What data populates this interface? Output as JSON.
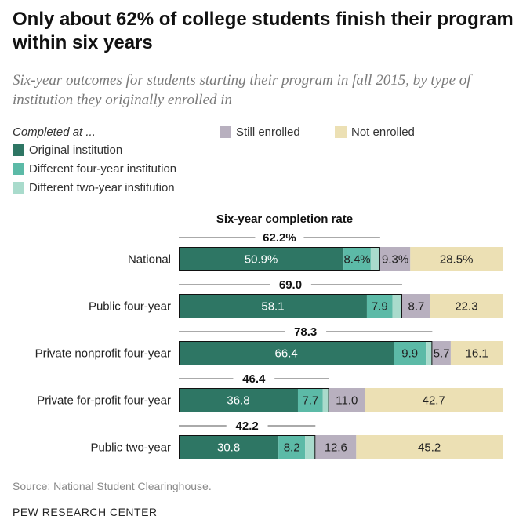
{
  "title": "Only about 62% of college students finish their program within six years",
  "subtitle": "Six-year outcomes for students starting their program in fall 2015, by type of institution they originally enrolled in",
  "legend": {
    "completed_header": "Completed at ...",
    "original": "Original institution",
    "diff_four": "Different four-year institution",
    "diff_two": "Different two-year institution",
    "still": "Still enrolled",
    "not": "Not enrolled"
  },
  "colors": {
    "original": "#2e7664",
    "diff_four": "#5cbaa7",
    "diff_two": "#a9dbcc",
    "still": "#b8b0bf",
    "not": "#ece0b4"
  },
  "source": "Source: National Student Clearinghouse.",
  "brand": "PEW RESEARCH CENTER",
  "chart_data": {
    "type": "bar",
    "orientation": "horizontal",
    "stacked": true,
    "title": "Six-year completion rate",
    "xlim": [
      0,
      100
    ],
    "categories": [
      "National",
      "Public four-year",
      "Private nonprofit four-year",
      "Private for-profit four-year",
      "Public two-year"
    ],
    "series": [
      {
        "name": "Original institution",
        "key": "original",
        "values": [
          50.9,
          58.1,
          66.4,
          36.8,
          30.8
        ],
        "labels": [
          "50.9%",
          "58.1",
          "66.4",
          "36.8",
          "30.8"
        ]
      },
      {
        "name": "Different four-year institution",
        "key": "diff_four",
        "values": [
          8.4,
          7.9,
          9.9,
          7.7,
          8.2
        ],
        "labels": [
          "8.4%",
          "7.9",
          "9.9",
          "7.7",
          "8.2"
        ]
      },
      {
        "name": "Different two-year institution",
        "key": "diff_two",
        "values": [
          2.9,
          3.0,
          2.0,
          1.9,
          3.2
        ],
        "labels": [
          "",
          "",
          "",
          "",
          ""
        ]
      },
      {
        "name": "Still enrolled",
        "key": "still",
        "values": [
          9.3,
          8.7,
          5.7,
          11.0,
          12.6
        ],
        "labels": [
          "9.3%",
          "8.7",
          "5.7",
          "11.0",
          "12.6"
        ]
      },
      {
        "name": "Not enrolled",
        "key": "not",
        "values": [
          28.5,
          22.3,
          16.1,
          42.7,
          45.2
        ],
        "labels": [
          "28.5%",
          "22.3",
          "16.1",
          "42.7",
          "45.2"
        ]
      }
    ],
    "completion_rates": [
      62.2,
      69.0,
      78.3,
      46.4,
      42.2
    ],
    "completion_labels": [
      "62.2%",
      "69.0",
      "78.3",
      "46.4",
      "42.2"
    ]
  }
}
